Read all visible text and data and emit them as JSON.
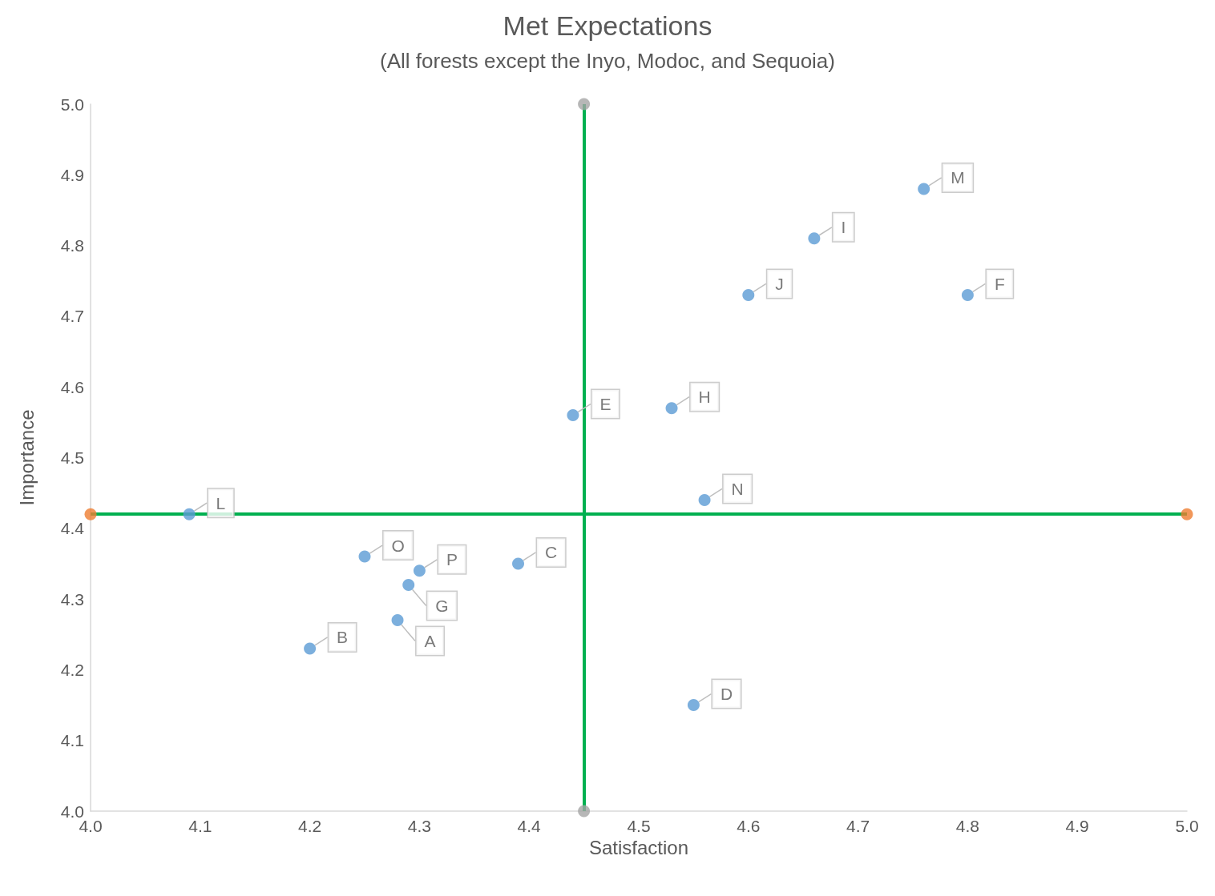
{
  "chart_data": {
    "type": "scatter",
    "title": "Met Expectations",
    "subtitle": "(All forests except the Inyo, Modoc, and Sequoia)",
    "xlabel": "Satisfaction",
    "ylabel": "Importance",
    "xlim": [
      4.0,
      5.0
    ],
    "xticks": [
      {
        "value": 4.0,
        "label": "4.0"
      },
      4.1,
      4.2,
      4.3,
      4.4,
      4.5,
      4.6,
      4.7,
      4.8,
      4.9,
      {
        "value": 5.0,
        "label": "5.0"
      }
    ],
    "ylim": [
      4.0,
      5.0
    ],
    "yticks": [
      {
        "value": 4.0,
        "label": "4.0"
      },
      4.1,
      4.2,
      4.3,
      4.4,
      4.5,
      4.6,
      4.7,
      4.8,
      4.9,
      {
        "value": 5.0,
        "label": "5.0"
      }
    ],
    "grid": false,
    "marker": "circle",
    "ref_lines": [
      {
        "axis": "x",
        "value": 4.45,
        "color": "#00b050"
      },
      {
        "axis": "y",
        "value": 4.42,
        "color": "#00b050"
      }
    ],
    "series": [
      {
        "color": "#5b9bd5",
        "x": [
          4.76,
          4.66,
          4.6,
          4.8,
          4.44,
          4.53,
          4.56,
          4.09,
          4.25,
          4.3,
          4.29,
          4.39,
          4.28,
          4.2,
          4.55
        ],
        "values": [
          4.88,
          4.81,
          4.73,
          4.73,
          4.56,
          4.57,
          4.44,
          4.42,
          4.36,
          4.34,
          4.32,
          4.35,
          4.27,
          4.23,
          4.15
        ],
        "value_labels": [
          "M",
          "I",
          "J",
          "F",
          "E",
          "H",
          "N",
          "L",
          "O",
          "P",
          "G",
          "C",
          "A",
          "B",
          "D"
        ]
      },
      {
        "color": "#a5a5a5",
        "x": [
          4.45,
          4.45
        ],
        "values": [
          4.0,
          5.0
        ]
      },
      {
        "color": "#ed7d31",
        "x": [
          4.0,
          5.0
        ],
        "values": [
          4.42,
          4.42
        ]
      }
    ]
  }
}
